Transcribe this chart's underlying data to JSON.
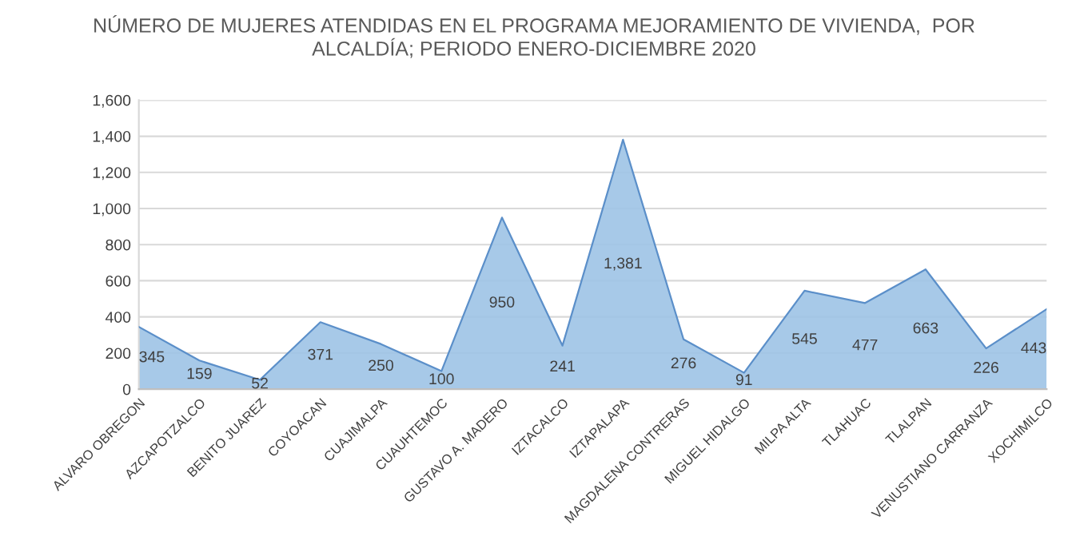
{
  "chart_data": {
    "type": "area",
    "title": "NÚMERO DE MUJERES ATENDIDAS EN EL PROGRAMA MEJORAMIENTO DE VIVIENDA,  POR\nALCALDÍA; PERIODO ENERO-DICIEMBRE 2020",
    "categories": [
      "ALVARO OBREGON",
      "AZCAPOTZALCO",
      "BENITO JUAREZ",
      "COYOACAN",
      "CUAJIMALPA",
      "CUAUHTEMOC",
      "GUSTAVO A. MADERO",
      "IZTACALCO",
      "IZTAPALAPA",
      "MAGDALENA CONTRERAS",
      "MIGUEL HIDALGO",
      "MILPA ALTA",
      "TLAHUAC",
      "TLALPAN",
      "VENUSTIANO CARRANZA",
      "XOCHIMILCO"
    ],
    "series": [
      {
        "color": "#9dc3e6",
        "values": [
          345,
          159,
          52,
          371,
          250,
          100,
          950,
          241,
          1381,
          276,
          91,
          545,
          477,
          663,
          226,
          443
        ]
      }
    ],
    "value_labels": [
      "345",
      "159",
      "52",
      "371",
      "250",
      "100",
      "950",
      "241",
      "1,381",
      "276",
      "91",
      "545",
      "477",
      "663",
      "226",
      "443"
    ],
    "ylim": [
      0,
      1600
    ],
    "yticks": [
      {
        "value": 0,
        "label": "0"
      },
      {
        "value": 200,
        "label": "200"
      },
      {
        "value": 400,
        "label": "400"
      },
      {
        "value": 600,
        "label": "600"
      },
      {
        "value": 800,
        "label": "800"
      },
      {
        "value": 1000,
        "label": "1,000"
      },
      {
        "value": 1200,
        "label": "1,200"
      },
      {
        "value": 1400,
        "label": "1,400"
      },
      {
        "value": 1600,
        "label": "1,600"
      }
    ],
    "grid": "y"
  }
}
